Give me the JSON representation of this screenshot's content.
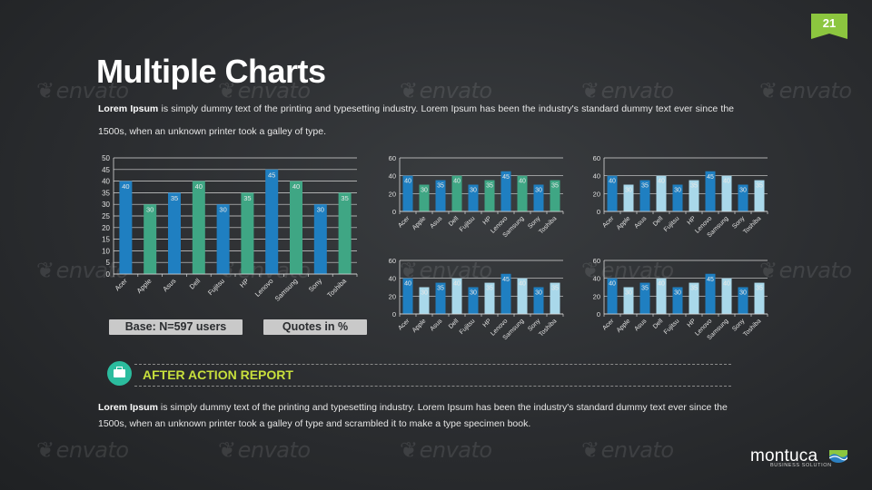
{
  "slide_number": "21",
  "title": "Multiple Charts",
  "intro": {
    "bold": "Lorem Ipsum",
    "text": " is simply dummy text of the printing and typesetting industry. Lorem Ipsum has been the industry's standard dummy text ever since the 1500s, when an unknown printer took a galley of type."
  },
  "watermark_text": "envato",
  "buttons": {
    "base": "Base: N=597 users",
    "quotes": "Quotes in %"
  },
  "report": {
    "title": "AFTER ACTION REPORT",
    "bold": "Lorem Ipsum",
    "text": " is simply dummy text of the printing and typesetting industry. Lorem Ipsum has been the industry's standard dummy text ever since the 1500s, when an unknown printer took a galley of type and scrambled it to make a type specimen book.",
    "icon": "briefcase-icon"
  },
  "brand": {
    "name": "montuca",
    "tagline": "BUSINESS SOLUTION",
    "icon": "wave-logo-icon"
  },
  "colors": {
    "blue": "#1f7fc1",
    "green": "#3fa684",
    "light": "#a9d8ea",
    "accent": "#8cc63f",
    "report_title": "#c8e03c"
  },
  "chart_data": [
    {
      "type": "bar",
      "categories": [
        "Acer",
        "Apple",
        "Asus",
        "Dell",
        "Fujitsu",
        "HP",
        "Lenovo",
        "Samsung",
        "Sony",
        "Toshiba"
      ],
      "values": [
        40,
        30,
        35,
        40,
        30,
        35,
        45,
        40,
        30,
        35
      ],
      "ylim": [
        0,
        50
      ],
      "yticks": [
        0,
        5,
        10,
        15,
        20,
        25,
        30,
        35,
        40,
        45,
        50
      ],
      "grid": true,
      "palette": [
        "#1f7fc1",
        "#3fa684"
      ]
    },
    {
      "type": "bar",
      "categories": [
        "Acer",
        "Apple",
        "Asus",
        "Dell",
        "Fujitsu",
        "HP",
        "Lenovo",
        "Samsung",
        "Sony",
        "Toshiba"
      ],
      "values": [
        40,
        30,
        35,
        40,
        30,
        35,
        45,
        40,
        30,
        35
      ],
      "ylim": [
        0,
        60
      ],
      "yticks": [
        0,
        20,
        40,
        60
      ],
      "grid": true,
      "palette": [
        "#1f7fc1",
        "#3fa684"
      ]
    },
    {
      "type": "bar",
      "categories": [
        "Acer",
        "Apple",
        "Asus",
        "Dell",
        "Fujitsu",
        "HP",
        "Lenovo",
        "Samsung",
        "Sony",
        "Toshiba"
      ],
      "values": [
        40,
        30,
        35,
        40,
        30,
        35,
        45,
        40,
        30,
        35
      ],
      "ylim": [
        0,
        60
      ],
      "yticks": [
        0,
        20,
        40,
        60
      ],
      "grid": true,
      "palette": [
        "#1f7fc1",
        "#a9d8ea"
      ]
    },
    {
      "type": "bar",
      "categories": [
        "Acer",
        "Apple",
        "Asus",
        "Dell",
        "Fujitsu",
        "HP",
        "Lenovo",
        "Samsung",
        "Sony",
        "Toshiba"
      ],
      "values": [
        40,
        30,
        35,
        40,
        30,
        35,
        45,
        40,
        30,
        35
      ],
      "ylim": [
        0,
        60
      ],
      "yticks": [
        0,
        20,
        40,
        60
      ],
      "grid": true,
      "palette": [
        "#1f7fc1",
        "#a9d8ea"
      ]
    },
    {
      "type": "bar",
      "categories": [
        "Acer",
        "Apple",
        "Asus",
        "Dell",
        "Fujitsu",
        "HP",
        "Lenovo",
        "Samsung",
        "Sony",
        "Toshiba"
      ],
      "values": [
        40,
        30,
        35,
        40,
        30,
        35,
        45,
        40,
        30,
        35
      ],
      "ylim": [
        0,
        60
      ],
      "yticks": [
        0,
        20,
        40,
        60
      ],
      "grid": true,
      "palette": [
        "#1f7fc1",
        "#a9d8ea"
      ]
    }
  ]
}
